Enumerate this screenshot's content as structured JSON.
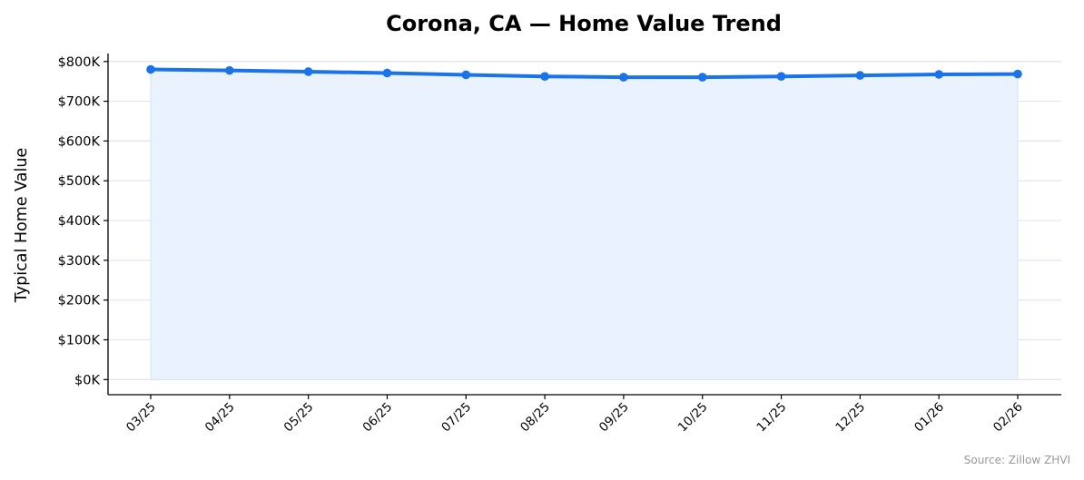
{
  "chart_data": {
    "type": "area",
    "title": "Corona, CA — Home Value Trend",
    "xlabel": "",
    "ylabel": "Typical Home Value",
    "categories": [
      "03/25",
      "04/25",
      "05/25",
      "06/25",
      "07/25",
      "08/25",
      "09/25",
      "10/25",
      "11/25",
      "12/25",
      "01/26",
      "02/26"
    ],
    "series": [
      {
        "values": [
          780000,
          777500,
          774500,
          771000,
          766500,
          762500,
          760500,
          760500,
          762500,
          765000,
          767500,
          768500
        ]
      }
    ],
    "yticks": [
      0,
      100000,
      200000,
      300000,
      400000,
      500000,
      600000,
      700000,
      800000
    ],
    "ytick_labels": [
      "$0K",
      "$100K",
      "$200K",
      "$300K",
      "$400K",
      "$500K",
      "$600K",
      "$700K",
      "$800K"
    ],
    "ylim": [
      -38000,
      820000
    ],
    "grid": "horizontal",
    "line_color": "#1a73e8",
    "fill_color": "#eaf2fd",
    "grid_color": "#e2e5ec",
    "source": "Source: Zillow ZHVI"
  }
}
